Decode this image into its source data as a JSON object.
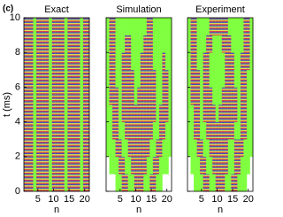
{
  "chart_data": [
    {
      "type": "heatmap",
      "panel_label": "(c)",
      "title": "Exact",
      "x_label": "n",
      "y_label": "t (ms)",
      "x": [
        1,
        2,
        3,
        4,
        5,
        6,
        7,
        8,
        9,
        10,
        11,
        12,
        13,
        14,
        15,
        16,
        17,
        18,
        19,
        20,
        21
      ],
      "y": [
        0.5,
        1.5,
        2.5,
        3.5,
        4.5,
        5.5,
        6.5,
        7.5,
        8.5,
        9.5
      ],
      "values": [
        [
          1,
          1,
          1,
          0,
          1,
          1,
          1,
          1,
          0,
          1,
          1,
          1,
          1,
          0,
          1,
          1,
          1,
          1,
          0,
          1,
          1
        ],
        [
          1,
          1,
          1,
          0,
          1,
          1,
          1,
          1,
          0,
          1,
          1,
          1,
          1,
          0,
          1,
          1,
          1,
          1,
          0,
          1,
          1
        ],
        [
          1,
          1,
          1,
          0,
          1,
          1,
          1,
          1,
          0,
          1,
          1,
          1,
          1,
          0,
          1,
          1,
          1,
          1,
          0,
          1,
          1
        ],
        [
          1,
          1,
          1,
          0,
          1,
          1,
          1,
          1,
          0,
          1,
          1,
          1,
          1,
          0,
          1,
          1,
          1,
          1,
          0,
          1,
          1
        ],
        [
          1,
          1,
          1,
          0,
          1,
          1,
          1,
          1,
          0,
          1,
          1,
          1,
          1,
          0,
          1,
          1,
          1,
          1,
          0,
          1,
          1
        ],
        [
          1,
          1,
          1,
          0,
          1,
          1,
          1,
          1,
          0,
          1,
          1,
          1,
          1,
          0,
          1,
          1,
          1,
          1,
          0,
          1,
          1
        ],
        [
          1,
          1,
          1,
          0,
          1,
          1,
          1,
          1,
          0,
          1,
          1,
          1,
          1,
          0,
          1,
          1,
          1,
          1,
          0,
          1,
          1
        ],
        [
          1,
          1,
          1,
          0,
          1,
          1,
          1,
          1,
          0,
          1,
          1,
          1,
          1,
          0,
          1,
          1,
          1,
          1,
          0,
          1,
          1
        ],
        [
          1,
          1,
          1,
          0,
          1,
          1,
          1,
          1,
          0,
          1,
          1,
          1,
          1,
          0,
          1,
          1,
          1,
          1,
          0,
          1,
          1
        ],
        [
          1,
          1,
          1,
          0,
          1,
          1,
          1,
          1,
          0,
          1,
          1,
          1,
          1,
          0,
          1,
          1,
          1,
          1,
          0,
          1,
          1
        ]
      ],
      "xlim": [
        0.5,
        21.5
      ],
      "xticks": [
        5,
        10,
        15,
        20
      ],
      "ylim": [
        0,
        10
      ],
      "yticks": [
        0,
        2,
        4,
        6,
        8,
        10
      ],
      "ytick_labels": true,
      "low_color": "#80ff40",
      "high_colors": [
        "#d8304a",
        "#3848c8",
        "#e8e050"
      ]
    },
    {
      "type": "heatmap",
      "title": "Simulation",
      "x_label": "n",
      "x": [
        1,
        2,
        3,
        4,
        5,
        6,
        7,
        8,
        9,
        10,
        11,
        12,
        13,
        14,
        15,
        16,
        17,
        18,
        19,
        20,
        21
      ],
      "y": [
        0.5,
        1.5,
        2.5,
        3.5,
        4.5,
        5.5,
        6.5,
        7.5,
        8.5,
        9.5
      ],
      "values": [
        [
          null,
          null,
          null,
          0,
          0,
          1,
          1,
          0,
          0,
          1,
          1,
          1,
          0,
          0,
          1,
          1,
          0,
          0,
          null,
          null,
          null
        ],
        [
          null,
          0,
          0,
          0,
          1,
          1,
          0,
          0,
          1,
          1,
          1,
          1,
          1,
          0,
          0,
          1,
          1,
          0,
          0,
          0,
          null
        ],
        [
          0,
          0,
          0,
          1,
          1,
          0,
          0,
          1,
          1,
          1,
          1,
          1,
          1,
          1,
          0,
          0,
          1,
          1,
          0,
          0,
          0
        ],
        [
          0,
          0,
          1,
          1,
          0,
          0,
          1,
          1,
          1,
          1,
          1,
          1,
          1,
          1,
          1,
          0,
          0,
          1,
          1,
          0,
          0
        ],
        [
          0,
          0,
          1,
          1,
          0,
          1,
          1,
          1,
          1,
          1,
          1,
          1,
          1,
          1,
          1,
          1,
          0,
          1,
          1,
          1,
          0
        ],
        [
          0,
          1,
          1,
          1,
          0,
          1,
          1,
          1,
          1,
          0,
          1,
          1,
          1,
          1,
          1,
          1,
          0,
          0,
          1,
          1,
          0
        ],
        [
          0,
          1,
          1,
          0,
          0,
          1,
          1,
          1,
          1,
          0,
          0,
          1,
          1,
          1,
          1,
          1,
          0,
          0,
          1,
          1,
          0
        ],
        [
          0,
          1,
          1,
          0,
          0,
          1,
          1,
          1,
          0,
          0,
          0,
          1,
          1,
          1,
          1,
          0,
          0,
          0,
          1,
          0,
          0
        ],
        [
          0,
          1,
          1,
          0,
          0,
          0,
          1,
          1,
          0,
          0,
          0,
          0,
          1,
          1,
          1,
          0,
          0,
          0,
          0,
          0,
          0
        ],
        [
          0,
          1,
          1,
          0,
          0,
          0,
          0,
          0,
          0,
          0,
          0,
          0,
          0,
          1,
          1,
          0,
          0,
          0,
          0,
          0,
          0
        ]
      ],
      "xlim": [
        0.5,
        21.5
      ],
      "xticks": [
        5,
        10,
        15,
        20
      ],
      "ylim": [
        0,
        10
      ],
      "yticks": [
        0,
        2,
        4,
        6,
        8,
        10
      ],
      "ytick_labels": false,
      "low_color": "#80ff40",
      "high_colors": [
        "#d8304a",
        "#3848c8",
        "#e8e050"
      ]
    },
    {
      "type": "heatmap",
      "title": "Experiment",
      "x_label": "n",
      "x": [
        1,
        2,
        3,
        4,
        5,
        6,
        7,
        8,
        9,
        10,
        11,
        12,
        13,
        14,
        15,
        16,
        17,
        18,
        19,
        20,
        21
      ],
      "y": [
        0.5,
        1.5,
        2.5,
        3.5,
        4.5,
        5.5,
        6.5,
        7.5,
        8.5,
        9.5
      ],
      "values": [
        [
          null,
          null,
          0,
          0,
          0,
          1,
          1,
          0,
          0,
          1,
          1,
          1,
          0,
          0,
          1,
          1,
          0,
          0,
          0,
          null,
          null
        ],
        [
          null,
          0,
          0,
          0,
          1,
          1,
          0,
          0,
          1,
          1,
          1,
          1,
          1,
          0,
          0,
          1,
          1,
          0,
          0,
          0,
          null
        ],
        [
          0,
          0,
          0,
          1,
          1,
          0,
          0,
          1,
          1,
          1,
          1,
          1,
          1,
          0,
          0,
          1,
          1,
          1,
          0,
          0,
          0
        ],
        [
          0,
          0,
          1,
          1,
          0,
          0,
          1,
          1,
          1,
          1,
          1,
          1,
          1,
          1,
          1,
          0,
          0,
          1,
          1,
          0,
          0
        ],
        [
          0,
          0,
          1,
          1,
          0,
          1,
          1,
          1,
          1,
          0,
          1,
          1,
          1,
          1,
          1,
          1,
          0,
          1,
          1,
          0,
          0
        ],
        [
          0,
          1,
          1,
          1,
          0,
          1,
          1,
          1,
          0,
          0,
          0,
          1,
          1,
          1,
          1,
          1,
          0,
          1,
          1,
          0,
          0
        ],
        [
          0,
          1,
          1,
          1,
          0,
          1,
          1,
          0,
          0,
          0,
          0,
          0,
          1,
          1,
          1,
          0,
          0,
          1,
          1,
          0,
          0
        ],
        [
          0,
          1,
          1,
          0,
          0,
          1,
          1,
          0,
          0,
          0,
          0,
          0,
          1,
          1,
          1,
          0,
          0,
          1,
          1,
          1,
          0
        ],
        [
          0,
          1,
          1,
          0,
          0,
          0,
          1,
          1,
          0,
          0,
          0,
          1,
          1,
          1,
          0,
          0,
          0,
          0,
          1,
          1,
          0
        ],
        [
          0,
          1,
          1,
          0,
          0,
          0,
          0,
          1,
          1,
          1,
          1,
          1,
          1,
          0,
          0,
          0,
          0,
          0,
          1,
          1,
          0
        ]
      ],
      "xlim": [
        0.5,
        21.5
      ],
      "xticks": [
        5,
        10,
        15,
        20
      ],
      "ylim": [
        0,
        10
      ],
      "yticks": [
        0,
        2,
        4,
        6,
        8,
        10
      ],
      "ytick_labels": false,
      "low_color": "#80ff40",
      "high_colors": [
        "#d8304a",
        "#3848c8",
        "#e8e050"
      ]
    }
  ]
}
